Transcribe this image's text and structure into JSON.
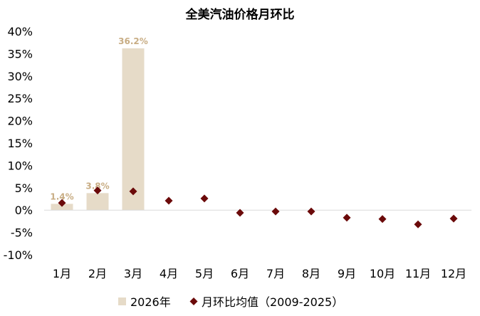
{
  "chart_data": {
    "type": "bar",
    "title": "全美汽油价格月环比",
    "categories": [
      "1月",
      "2月",
      "3月",
      "4月",
      "5月",
      "6月",
      "7月",
      "8月",
      "9月",
      "10月",
      "11月",
      "12月"
    ],
    "ylim": [
      -10,
      40
    ],
    "yticks": [
      "40%",
      "35%",
      "30%",
      "25%",
      "20%",
      "15%",
      "10%",
      "5%",
      "0%",
      "-5%",
      "-10%"
    ],
    "ytick_values": [
      40,
      35,
      30,
      25,
      20,
      15,
      10,
      5,
      0,
      -5,
      -10
    ],
    "grid": false,
    "legend_position": "bottom",
    "series": [
      {
        "name": "2026年",
        "type": "bar",
        "color": "#e6dbc8",
        "values": [
          1.4,
          3.8,
          36.2,
          null,
          null,
          null,
          null,
          null,
          null,
          null,
          null,
          null
        ],
        "labels": [
          "1.4%",
          "3.8%",
          "36.2%",
          "",
          "",
          "",
          "",
          "",
          "",
          "",
          "",
          ""
        ]
      },
      {
        "name": "月环比均值（2009-2025）",
        "type": "scatter",
        "marker": "diamond",
        "color": "#6b0a0a",
        "values": [
          1.6,
          4.4,
          4.2,
          2.1,
          2.6,
          -0.6,
          -0.3,
          -0.3,
          -1.7,
          -2.0,
          -3.2,
          -1.9
        ]
      }
    ]
  }
}
